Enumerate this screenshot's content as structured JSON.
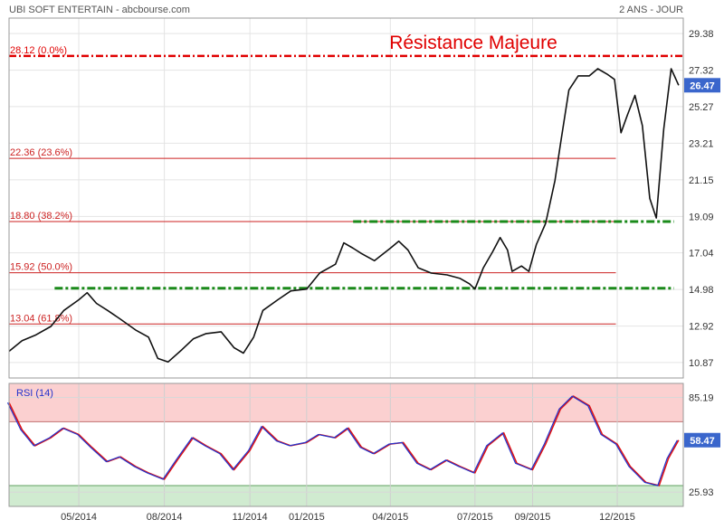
{
  "header": {
    "title": "UBI SOFT ENTERTAIN - abcbourse.com",
    "period": "2 ANS - JOUR"
  },
  "annotation": {
    "resistance_label": "Résistance Majeure",
    "resistance_color": "#e00000"
  },
  "price_panel": {
    "y_ticks": [
      29.38,
      27.32,
      25.27,
      23.21,
      21.15,
      19.09,
      17.04,
      14.98,
      12.92,
      10.87
    ],
    "y_range": [
      10.0,
      30.25
    ],
    "current_value": "26.47",
    "current_numeric": 26.47,
    "badge_color": "#3a66cc"
  },
  "fibonacci": [
    {
      "value": 28.12,
      "label": "28.12  (0.0%)",
      "style": "dash-dot",
      "color": "#e00000",
      "end": 1.0
    },
    {
      "value": 22.36,
      "label": "22.36  (23.6%)",
      "style": "solid",
      "color": "#cc2222",
      "end": 0.9
    },
    {
      "value": 18.8,
      "label": "18.80  (38.2%)",
      "style": "solid",
      "color": "#cc2222",
      "end": 0.9
    },
    {
      "value": 15.92,
      "label": "15.92  (50.0%)",
      "style": "solid",
      "color": "#cc2222",
      "end": 0.9
    },
    {
      "value": 13.04,
      "label": "13.04  (61.8%)",
      "style": "solid",
      "color": "#cc2222",
      "end": 0.9
    }
  ],
  "support_lines": [
    {
      "value": 18.8,
      "x_start": "2015-02-20",
      "x_end": "2016-01-31",
      "color": "#1a8a1a"
    },
    {
      "value": 15.05,
      "x_start": "2014-04-05",
      "x_end": "2016-01-31",
      "color": "#1a8a1a"
    }
  ],
  "x_axis": {
    "labels": [
      {
        "label": "05/2014",
        "date": "2014-05-01"
      },
      {
        "label": "08/2014",
        "date": "2014-08-01"
      },
      {
        "label": "11/2014",
        "date": "2014-11-01"
      },
      {
        "label": "01/2015",
        "date": "2015-01-01"
      },
      {
        "label": "04/2015",
        "date": "2015-04-01"
      },
      {
        "label": "07/2015",
        "date": "2015-07-01"
      },
      {
        "label": "09/2015",
        "date": "2015-09-01"
      },
      {
        "label": "12/2015",
        "date": "2015-12-01"
      }
    ],
    "range": [
      "2014-02-15",
      "2016-02-10"
    ]
  },
  "rsi_panel": {
    "label": "RSI (14)",
    "y_ticks": [
      85.19,
      25.93
    ],
    "y_range": [
      17.0,
      94.0
    ],
    "overbought": 70,
    "oversold": 30,
    "current_value": "58.47",
    "current_numeric": 58.47,
    "rsi_color": "#2233cc",
    "signal_color": "#e01010"
  },
  "chart_data": {
    "type": "line",
    "title": "UBI SOFT ENTERTAIN - abcbourse.com",
    "x_range": [
      "2014-02-15",
      "2016-02-10"
    ],
    "price_series": {
      "name": "UBI SOFT ENTERTAIN",
      "points": [
        [
          "2014-02-15",
          11.5
        ],
        [
          "2014-03-01",
          12.1
        ],
        [
          "2014-03-15",
          12.4
        ],
        [
          "2014-04-01",
          12.9
        ],
        [
          "2014-04-15",
          13.8
        ],
        [
          "2014-05-01",
          14.4
        ],
        [
          "2014-05-10",
          14.8
        ],
        [
          "2014-05-20",
          14.2
        ],
        [
          "2014-06-01",
          13.8
        ],
        [
          "2014-06-15",
          13.3
        ],
        [
          "2014-07-01",
          12.7
        ],
        [
          "2014-07-15",
          12.3
        ],
        [
          "2014-07-25",
          11.1
        ],
        [
          "2014-08-05",
          10.9
        ],
        [
          "2014-08-20",
          11.6
        ],
        [
          "2014-09-01",
          12.2
        ],
        [
          "2014-09-15",
          12.5
        ],
        [
          "2014-10-01",
          12.6
        ],
        [
          "2014-10-15",
          11.7
        ],
        [
          "2014-10-25",
          11.4
        ],
        [
          "2014-11-05",
          12.3
        ],
        [
          "2014-11-15",
          13.8
        ],
        [
          "2014-12-01",
          14.4
        ],
        [
          "2014-12-15",
          14.9
        ],
        [
          "2015-01-01",
          15.0
        ],
        [
          "2015-01-15",
          15.9
        ],
        [
          "2015-02-01",
          16.4
        ],
        [
          "2015-02-10",
          17.6
        ],
        [
          "2015-02-20",
          17.3
        ],
        [
          "2015-03-01",
          17.0
        ],
        [
          "2015-03-15",
          16.6
        ],
        [
          "2015-04-01",
          17.3
        ],
        [
          "2015-04-10",
          17.7
        ],
        [
          "2015-04-20",
          17.2
        ],
        [
          "2015-05-01",
          16.2
        ],
        [
          "2015-05-15",
          15.9
        ],
        [
          "2015-06-01",
          15.8
        ],
        [
          "2015-06-15",
          15.6
        ],
        [
          "2015-06-25",
          15.3
        ],
        [
          "2015-07-01",
          15.0
        ],
        [
          "2015-07-10",
          16.2
        ],
        [
          "2015-07-20",
          17.1
        ],
        [
          "2015-07-28",
          17.9
        ],
        [
          "2015-08-05",
          17.2
        ],
        [
          "2015-08-10",
          16.0
        ],
        [
          "2015-08-20",
          16.3
        ],
        [
          "2015-08-28",
          16.0
        ],
        [
          "2015-09-05",
          17.5
        ],
        [
          "2015-09-15",
          18.7
        ],
        [
          "2015-09-25",
          21.1
        ],
        [
          "2015-10-01",
          23.2
        ],
        [
          "2015-10-10",
          26.2
        ],
        [
          "2015-10-20",
          27.0
        ],
        [
          "2015-11-01",
          27.0
        ],
        [
          "2015-11-10",
          27.4
        ],
        [
          "2015-11-20",
          27.1
        ],
        [
          "2015-11-28",
          26.8
        ],
        [
          "2015-12-05",
          23.8
        ],
        [
          "2015-12-12",
          24.8
        ],
        [
          "2015-12-20",
          25.9
        ],
        [
          "2015-12-28",
          24.2
        ],
        [
          "2016-01-05",
          20.1
        ],
        [
          "2016-01-12",
          19.0
        ],
        [
          "2016-01-20",
          24.0
        ],
        [
          "2016-01-28",
          27.4
        ],
        [
          "2016-02-05",
          26.47
        ]
      ]
    },
    "rsi_series": {
      "name": "RSI (14)",
      "points": [
        [
          "2014-02-15",
          82
        ],
        [
          "2014-03-01",
          65
        ],
        [
          "2014-03-15",
          55
        ],
        [
          "2014-04-01",
          60
        ],
        [
          "2014-04-15",
          66
        ],
        [
          "2014-05-01",
          62
        ],
        [
          "2014-05-15",
          54
        ],
        [
          "2014-06-01",
          45
        ],
        [
          "2014-06-15",
          48
        ],
        [
          "2014-07-01",
          42
        ],
        [
          "2014-07-15",
          38
        ],
        [
          "2014-08-01",
          34
        ],
        [
          "2014-08-15",
          46
        ],
        [
          "2014-09-01",
          60
        ],
        [
          "2014-09-15",
          55
        ],
        [
          "2014-10-01",
          50
        ],
        [
          "2014-10-15",
          40
        ],
        [
          "2014-11-01",
          52
        ],
        [
          "2014-11-15",
          67
        ],
        [
          "2014-12-01",
          58
        ],
        [
          "2014-12-15",
          55
        ],
        [
          "2015-01-01",
          57
        ],
        [
          "2015-01-15",
          62
        ],
        [
          "2015-02-01",
          60
        ],
        [
          "2015-02-15",
          66
        ],
        [
          "2015-03-01",
          54
        ],
        [
          "2015-03-15",
          50
        ],
        [
          "2015-04-01",
          56
        ],
        [
          "2015-04-15",
          57
        ],
        [
          "2015-05-01",
          44
        ],
        [
          "2015-05-15",
          40
        ],
        [
          "2015-06-01",
          46
        ],
        [
          "2015-06-15",
          42
        ],
        [
          "2015-07-01",
          38
        ],
        [
          "2015-07-15",
          55
        ],
        [
          "2015-08-01",
          63
        ],
        [
          "2015-08-15",
          44
        ],
        [
          "2015-09-01",
          40
        ],
        [
          "2015-09-15",
          56
        ],
        [
          "2015-10-01",
          78
        ],
        [
          "2015-10-15",
          86
        ],
        [
          "2015-11-01",
          80
        ],
        [
          "2015-11-15",
          62
        ],
        [
          "2015-12-01",
          56
        ],
        [
          "2015-12-15",
          42
        ],
        [
          "2016-01-01",
          32
        ],
        [
          "2016-01-15",
          30
        ],
        [
          "2016-01-25",
          47
        ],
        [
          "2016-02-05",
          58.47
        ]
      ]
    },
    "price_ylim": [
      10.0,
      30.25
    ],
    "rsi_ylim": [
      17.0,
      94.0
    ],
    "grid": true
  }
}
